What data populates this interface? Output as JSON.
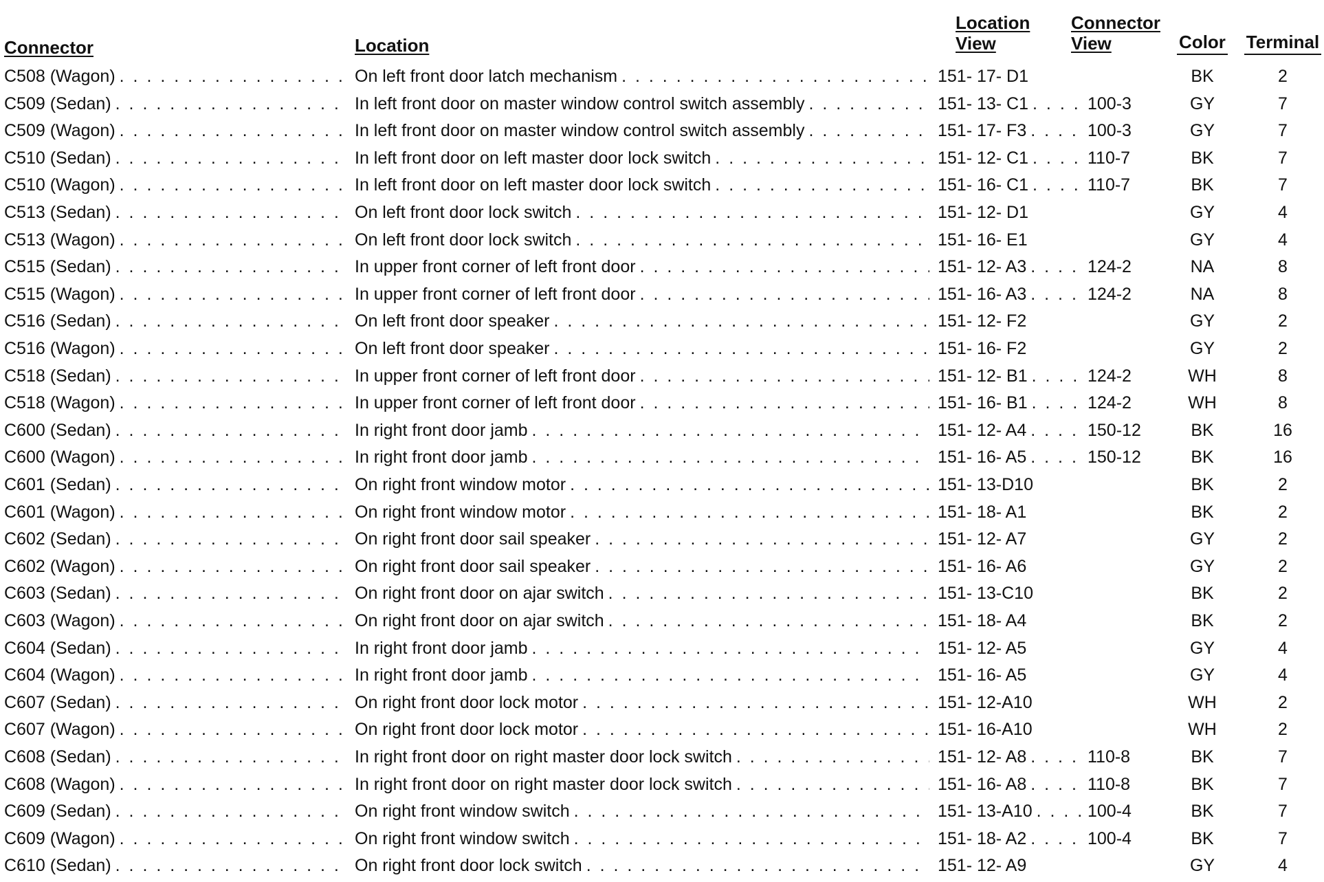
{
  "headers": {
    "connector": "Connector",
    "location": "Location",
    "location_view_1": "Location",
    "location_view_2": "View",
    "connector_view_1": "Connector",
    "connector_view_2": "View",
    "color": "Color",
    "terminal": "Terminal"
  },
  "rows": [
    {
      "connector": "C508 (Wagon)",
      "location": "On left front door latch mechanism",
      "location_view": "151- 17- D1",
      "connector_view": "",
      "color": "BK",
      "terminal": "2"
    },
    {
      "connector": "C509 (Sedan)",
      "location": "In left front door on master window control switch assembly",
      "location_view": "151- 13- C1",
      "connector_view": "100-3",
      "color": "GY",
      "terminal": "7"
    },
    {
      "connector": "C509 (Wagon)",
      "location": "In left front door on master window control switch assembly",
      "location_view": "151- 17- F3",
      "connector_view": "100-3",
      "color": "GY",
      "terminal": "7"
    },
    {
      "connector": "C510 (Sedan)",
      "location": "In left front door on left master door lock switch",
      "location_view": "151- 12- C1",
      "connector_view": "110-7",
      "color": "BK",
      "terminal": "7"
    },
    {
      "connector": "C510 (Wagon)",
      "location": "In left front door on left master door lock switch",
      "location_view": "151- 16- C1",
      "connector_view": "110-7",
      "color": "BK",
      "terminal": "7"
    },
    {
      "connector": "C513 (Sedan)",
      "location": "On left front door lock switch",
      "location_view": "151- 12- D1",
      "connector_view": "",
      "color": "GY",
      "terminal": "4"
    },
    {
      "connector": "C513 (Wagon)",
      "location": "On left front door lock switch",
      "location_view": "151- 16- E1",
      "connector_view": "",
      "color": "GY",
      "terminal": "4"
    },
    {
      "connector": "C515 (Sedan)",
      "location": "In upper front corner of left front door",
      "location_view": "151- 12- A3",
      "connector_view": "124-2",
      "color": "NA",
      "terminal": "8"
    },
    {
      "connector": "C515 (Wagon)",
      "location": "In upper front corner of left front door",
      "location_view": "151- 16- A3",
      "connector_view": "124-2",
      "color": "NA",
      "terminal": "8"
    },
    {
      "connector": "C516 (Sedan)",
      "location": "On left front door speaker",
      "location_view": "151- 12- F2",
      "connector_view": "",
      "color": "GY",
      "terminal": "2"
    },
    {
      "connector": "C516 (Wagon)",
      "location": "On left front door speaker",
      "location_view": "151- 16- F2",
      "connector_view": "",
      "color": "GY",
      "terminal": "2"
    },
    {
      "connector": "C518 (Sedan)",
      "location": "In upper front corner of left front door",
      "location_view": "151- 12- B1",
      "connector_view": "124-2",
      "color": "WH",
      "terminal": "8"
    },
    {
      "connector": "C518 (Wagon)",
      "location": "In upper front corner of left front door",
      "location_view": "151- 16- B1",
      "connector_view": "124-2",
      "color": "WH",
      "terminal": "8"
    },
    {
      "connector": "C600 (Sedan)",
      "location": "In right front door jamb",
      "location_view": "151- 12- A4",
      "connector_view": "150-12",
      "color": "BK",
      "terminal": "16"
    },
    {
      "connector": "C600 (Wagon)",
      "location": "In right front door jamb",
      "location_view": "151- 16- A5",
      "connector_view": "150-12",
      "color": "BK",
      "terminal": "16"
    },
    {
      "connector": "C601 (Sedan)",
      "location": "On right front window motor",
      "location_view": "151- 13-D10",
      "connector_view": "",
      "color": "BK",
      "terminal": "2"
    },
    {
      "connector": "C601 (Wagon)",
      "location": "On right front window motor",
      "location_view": "151- 18- A1",
      "connector_view": "",
      "color": "BK",
      "terminal": "2"
    },
    {
      "connector": "C602 (Sedan)",
      "location": "On right front door sail speaker",
      "location_view": "151- 12- A7",
      "connector_view": "",
      "color": "GY",
      "terminal": "2"
    },
    {
      "connector": "C602 (Wagon)",
      "location": "On right front door sail speaker",
      "location_view": "151- 16- A6",
      "connector_view": "",
      "color": "GY",
      "terminal": "2"
    },
    {
      "connector": "C603 (Sedan)",
      "location": "On right front door on ajar switch",
      "location_view": "151- 13-C10",
      "connector_view": "",
      "color": "BK",
      "terminal": "2"
    },
    {
      "connector": "C603 (Wagon)",
      "location": "On right front door on ajar switch",
      "location_view": "151- 18- A4",
      "connector_view": "",
      "color": "BK",
      "terminal": "2"
    },
    {
      "connector": "C604 (Sedan)",
      "location": "In right front door jamb",
      "location_view": "151- 12- A5",
      "connector_view": "",
      "color": "GY",
      "terminal": "4"
    },
    {
      "connector": "C604 (Wagon)",
      "location": "In right front door jamb",
      "location_view": "151- 16- A5",
      "connector_view": "",
      "color": "GY",
      "terminal": "4"
    },
    {
      "connector": "C607 (Sedan)",
      "location": "On right front door lock motor",
      "location_view": "151- 12-A10",
      "connector_view": "",
      "color": "WH",
      "terminal": "2"
    },
    {
      "connector": "C607 (Wagon)",
      "location": "On right front door lock motor",
      "location_view": "151- 16-A10",
      "connector_view": "",
      "color": "WH",
      "terminal": "2"
    },
    {
      "connector": "C608 (Sedan)",
      "location": "In right front door on right master door lock switch",
      "location_view": "151- 12- A8",
      "connector_view": "110-8",
      "color": "BK",
      "terminal": "7"
    },
    {
      "connector": "C608 (Wagon)",
      "location": "In right front door on right master door lock switch",
      "location_view": "151- 16- A8",
      "connector_view": "110-8",
      "color": "BK",
      "terminal": "7"
    },
    {
      "connector": "C609 (Sedan)",
      "location": "On right front window switch",
      "location_view": "151- 13-A10",
      "connector_view": "100-4",
      "color": "BK",
      "terminal": "7"
    },
    {
      "connector": "C609 (Wagon)",
      "location": "On right front window switch",
      "location_view": "151- 18- A2",
      "connector_view": "100-4",
      "color": "BK",
      "terminal": "7"
    },
    {
      "connector": "C610 (Sedan)",
      "location": "On right front door lock switch",
      "location_view": "151- 12- A9",
      "connector_view": "",
      "color": "GY",
      "terminal": "4"
    }
  ]
}
